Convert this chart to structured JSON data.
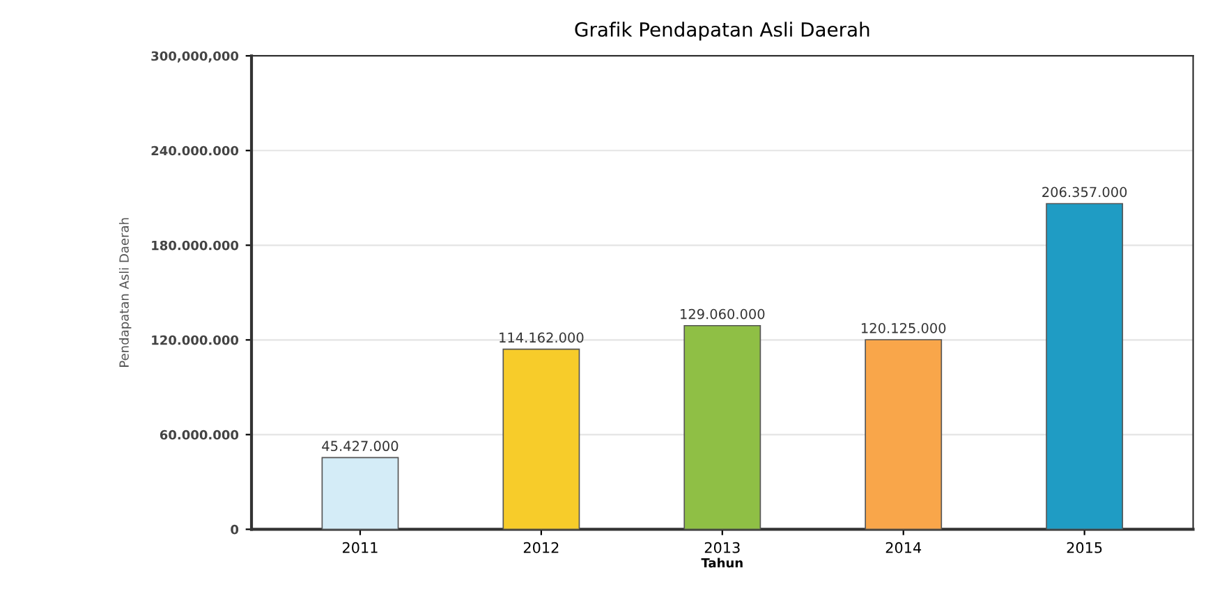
{
  "chart_data": {
    "type": "bar",
    "title": "Grafik Pendapatan Asli Daerah",
    "xlabel": "Tahun",
    "ylabel": "Pendapatan Asli Daerah",
    "categories": [
      "2011",
      "2012",
      "2013",
      "2014",
      "2015"
    ],
    "values": [
      45427000,
      114162000,
      129060000,
      120125000,
      206357000
    ],
    "colors": [
      "#d4ecf7",
      "#f7cc2a",
      "#8fbf45",
      "#f9a64a",
      "#1f9cc4"
    ],
    "value_labels": [
      "45.427.000",
      "114.162.000",
      "129.060.000",
      "120.125.000",
      "206.357.000"
    ],
    "ylim": [
      0,
      300000000
    ],
    "yticks": [
      0,
      {
        "value": 60000000,
        "label": "60.000.000"
      },
      {
        "value": 120000000,
        "label": "120.000.000"
      },
      {
        "value": 180000000,
        "label": "180.000.000"
      },
      {
        "value": 240000000,
        "label": "240.000.000"
      },
      {
        "value": 300000000,
        "label": "300,000,000"
      }
    ],
    "grid": "y",
    "legend": false
  }
}
